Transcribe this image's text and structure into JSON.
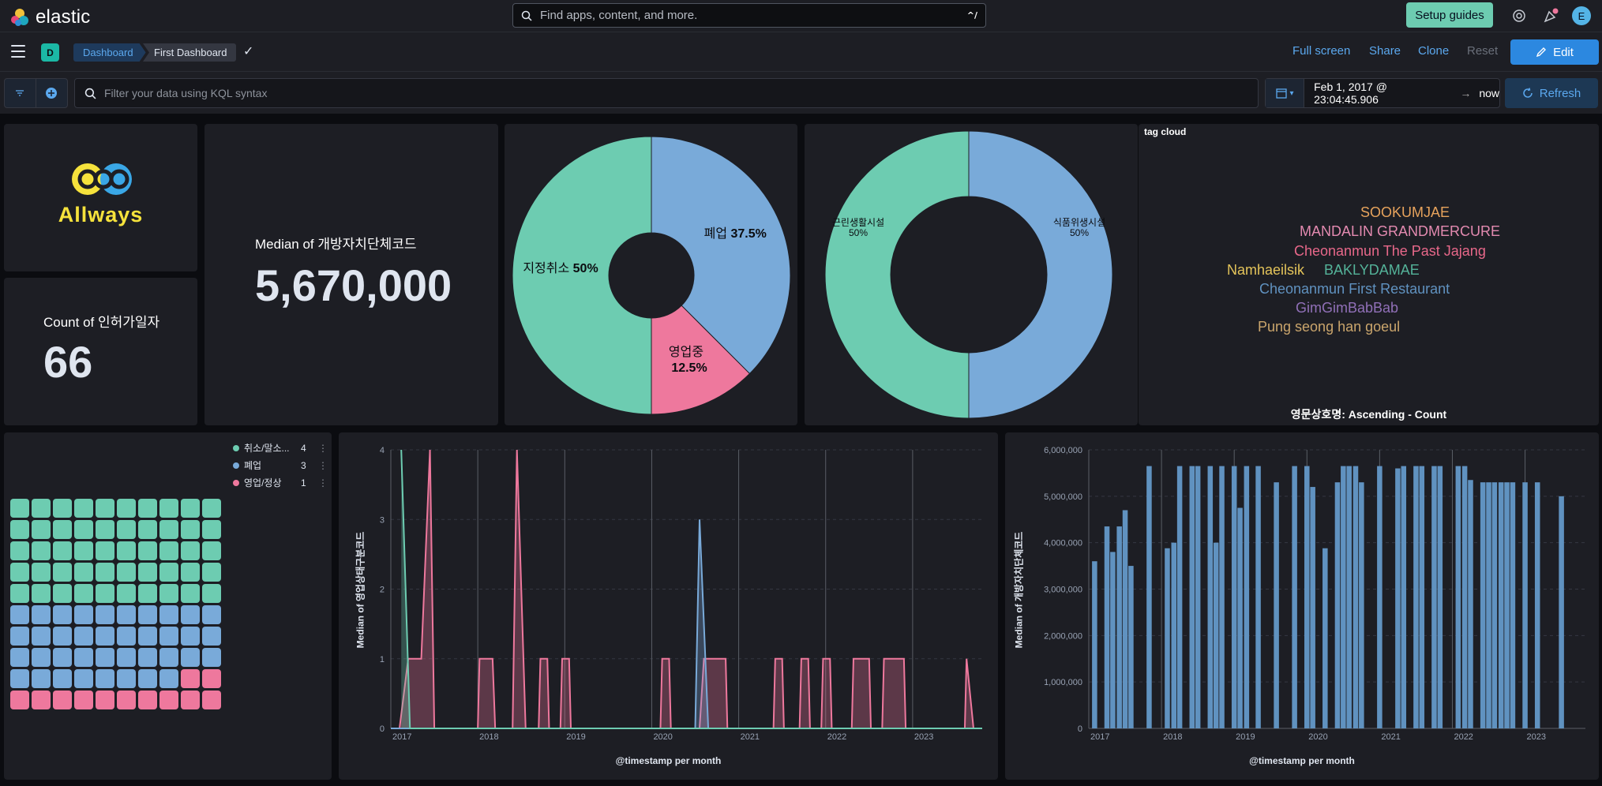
{
  "header": {
    "brand": "elastic",
    "search_placeholder": "Find apps, content, and more.",
    "search_shortcut": "^/",
    "setup_guides": "Setup guides",
    "avatar_initial": "E",
    "icons": [
      "help-icon",
      "newsfeed-icon",
      "user-avatar"
    ]
  },
  "nav": {
    "space_initial": "D",
    "breadcrumbs": [
      "Dashboard",
      "First Dashboard"
    ],
    "links": {
      "full_screen": "Full screen",
      "share": "Share",
      "clone": "Clone",
      "reset": "Reset"
    },
    "edit": "Edit"
  },
  "filter": {
    "kql_placeholder": "Filter your data using KQL syntax",
    "date_start": "Feb 1, 2017 @ 23:04:45.906",
    "date_end": "now",
    "refresh": "Refresh"
  },
  "logo_panel": {
    "text": "Allways"
  },
  "count_metric": {
    "label": "Count of 인허가일자",
    "value": "66"
  },
  "median_metric": {
    "label": "Median of 개방자치단체코드",
    "value": "5,670,000"
  },
  "pie1": {
    "slices": [
      {
        "name": "지정취소",
        "pct": "50%",
        "value": 50,
        "color": "#6dccb1"
      },
      {
        "name": "폐업",
        "pct": "37.5%",
        "value": 37.5,
        "color": "#79aad9"
      },
      {
        "name": "영업중",
        "pct": "12.5%",
        "value": 12.5,
        "color": "#ee789d"
      }
    ]
  },
  "pie2": {
    "slices": [
      {
        "name": "근린생활시설",
        "pct": "50%",
        "value": 50,
        "color": "#6dccb1"
      },
      {
        "name": "식품위생시설",
        "pct": "50%",
        "value": 50,
        "color": "#79aad9"
      }
    ]
  },
  "tag_cloud": {
    "title": "tag cloud",
    "tags": [
      {
        "text": "SOOKUMJAE",
        "color": "#e7a35c"
      },
      {
        "text": "MANDALIN GRANDMERCURE",
        "color": "#e38ab0"
      },
      {
        "text": "Cheonanmun The Past Jajang",
        "color": "#e8688a"
      },
      {
        "text": "Namhaeilsik",
        "color": "#e4c45a"
      },
      {
        "text": "BAKLYDAMAE",
        "color": "#54b399"
      },
      {
        "text": "Cheonanmun First Restaurant",
        "color": "#6092c0"
      },
      {
        "text": "GimGimBabBab",
        "color": "#9170b8"
      },
      {
        "text": "Pung seong han goeul",
        "color": "#caa56c"
      }
    ],
    "footer": "영문상호명: Ascending - Count"
  },
  "waffle": {
    "legend": [
      {
        "name": "취소/말소...",
        "count": "4",
        "color": "#6dccb1"
      },
      {
        "name": "폐업",
        "count": "3",
        "color": "#79aad9"
      },
      {
        "name": "영업/정상",
        "count": "1",
        "color": "#ee789d"
      }
    ],
    "cells": {
      "green": 50,
      "blue": 38,
      "pink": 12
    }
  },
  "chart_data": [
    {
      "type": "area",
      "xlabel": "@timestamp per month",
      "ylabel": "Median of 영업상태구분코드",
      "ylim": [
        0,
        4
      ],
      "yticks": [
        "0",
        "1",
        "2",
        "3",
        "4"
      ],
      "xticks": [
        "2017",
        "2018",
        "2019",
        "2020",
        "2021",
        "2022",
        "2023"
      ],
      "x_range": [
        2017.0,
        2023.8
      ],
      "series": [
        {
          "color": "#ee789d",
          "points": [
            [
              2017.1,
              0
            ],
            [
              2017.2,
              1
            ],
            [
              2017.35,
              1
            ],
            [
              2017.45,
              4
            ],
            [
              2017.5,
              0
            ],
            [
              2018.0,
              0
            ],
            [
              2018.02,
              1
            ],
            [
              2018.17,
              1
            ],
            [
              2018.2,
              0
            ],
            [
              2018.4,
              0
            ],
            [
              2018.45,
              4
            ],
            [
              2018.55,
              0
            ],
            [
              2018.7,
              0
            ],
            [
              2018.72,
              1
            ],
            [
              2018.8,
              1
            ],
            [
              2018.82,
              0
            ],
            [
              2018.95,
              0
            ],
            [
              2018.97,
              1
            ],
            [
              2019.05,
              1
            ],
            [
              2019.07,
              0
            ],
            [
              2020.1,
              0
            ],
            [
              2020.12,
              1
            ],
            [
              2020.2,
              1
            ],
            [
              2020.22,
              0
            ],
            [
              2020.55,
              0
            ],
            [
              2020.6,
              1
            ],
            [
              2020.85,
              1
            ],
            [
              2020.87,
              0
            ],
            [
              2021.4,
              0
            ],
            [
              2021.42,
              1
            ],
            [
              2021.5,
              1
            ],
            [
              2021.52,
              0
            ],
            [
              2021.7,
              0
            ],
            [
              2021.72,
              1
            ],
            [
              2021.8,
              1
            ],
            [
              2021.82,
              0
            ],
            [
              2021.95,
              0
            ],
            [
              2021.97,
              1
            ],
            [
              2022.05,
              1
            ],
            [
              2022.07,
              0
            ],
            [
              2022.3,
              0
            ],
            [
              2022.32,
              1
            ],
            [
              2022.5,
              1
            ],
            [
              2022.52,
              0
            ],
            [
              2022.65,
              0
            ],
            [
              2022.67,
              1
            ],
            [
              2022.9,
              1
            ],
            [
              2022.92,
              0
            ],
            [
              2023.6,
              0
            ],
            [
              2023.62,
              1
            ],
            [
              2023.7,
              0
            ],
            [
              2023.8,
              0
            ]
          ]
        },
        {
          "color": "#79aad9",
          "points": [
            [
              2017.0,
              0
            ],
            [
              2020.5,
              0
            ],
            [
              2020.55,
              3
            ],
            [
              2020.65,
              0
            ],
            [
              2023.8,
              0
            ]
          ]
        },
        {
          "color": "#6dccb1",
          "points": [
            [
              2017.12,
              4
            ],
            [
              2017.22,
              0
            ],
            [
              2023.8,
              0
            ]
          ]
        }
      ]
    },
    {
      "type": "bar",
      "xlabel": "@timestamp per month",
      "ylabel": "Median of 개방자치단체코드",
      "ylim": [
        0,
        6000000
      ],
      "yticks": [
        "0",
        "1,000,000",
        "2,000,000",
        "3,000,000",
        "4,000,000",
        "5,000,000",
        "6,000,000"
      ],
      "xticks": [
        "2017",
        "2018",
        "2019",
        "2020",
        "2021",
        "2022",
        "2023"
      ],
      "x_range": [
        2017.0,
        2023.83
      ],
      "values": [
        [
          2017.08,
          3600000
        ],
        [
          2017.25,
          4350000
        ],
        [
          2017.33,
          3800000
        ],
        [
          2017.42,
          4350000
        ],
        [
          2017.5,
          4700000
        ],
        [
          2017.58,
          3500000
        ],
        [
          2017.83,
          5650000
        ],
        [
          2018.08,
          3880000
        ],
        [
          2018.17,
          4000000
        ],
        [
          2018.25,
          5650000
        ],
        [
          2018.42,
          5650000
        ],
        [
          2018.5,
          5650000
        ],
        [
          2018.67,
          5650000
        ],
        [
          2018.75,
          4000000
        ],
        [
          2018.83,
          5650000
        ],
        [
          2019.0,
          5650000
        ],
        [
          2019.08,
          4750000
        ],
        [
          2019.17,
          5650000
        ],
        [
          2019.33,
          5650000
        ],
        [
          2019.58,
          5300000
        ],
        [
          2019.83,
          5650000
        ],
        [
          2020.0,
          5650000
        ],
        [
          2020.08,
          5200000
        ],
        [
          2020.25,
          3880000
        ],
        [
          2020.42,
          5300000
        ],
        [
          2020.5,
          5650000
        ],
        [
          2020.58,
          5650000
        ],
        [
          2020.67,
          5650000
        ],
        [
          2020.75,
          5300000
        ],
        [
          2021.0,
          5650000
        ],
        [
          2021.25,
          5600000
        ],
        [
          2021.33,
          5650000
        ],
        [
          2021.5,
          5650000
        ],
        [
          2021.58,
          5650000
        ],
        [
          2021.75,
          5650000
        ],
        [
          2021.83,
          5650000
        ],
        [
          2022.08,
          5650000
        ],
        [
          2022.17,
          5650000
        ],
        [
          2022.25,
          5350000
        ],
        [
          2022.42,
          5300000
        ],
        [
          2022.5,
          5300000
        ],
        [
          2022.58,
          5300000
        ],
        [
          2022.67,
          5300000
        ],
        [
          2022.75,
          5300000
        ],
        [
          2022.83,
          5300000
        ],
        [
          2023.0,
          5300000
        ],
        [
          2023.17,
          5300000
        ],
        [
          2023.5,
          5000000
        ]
      ]
    }
  ]
}
